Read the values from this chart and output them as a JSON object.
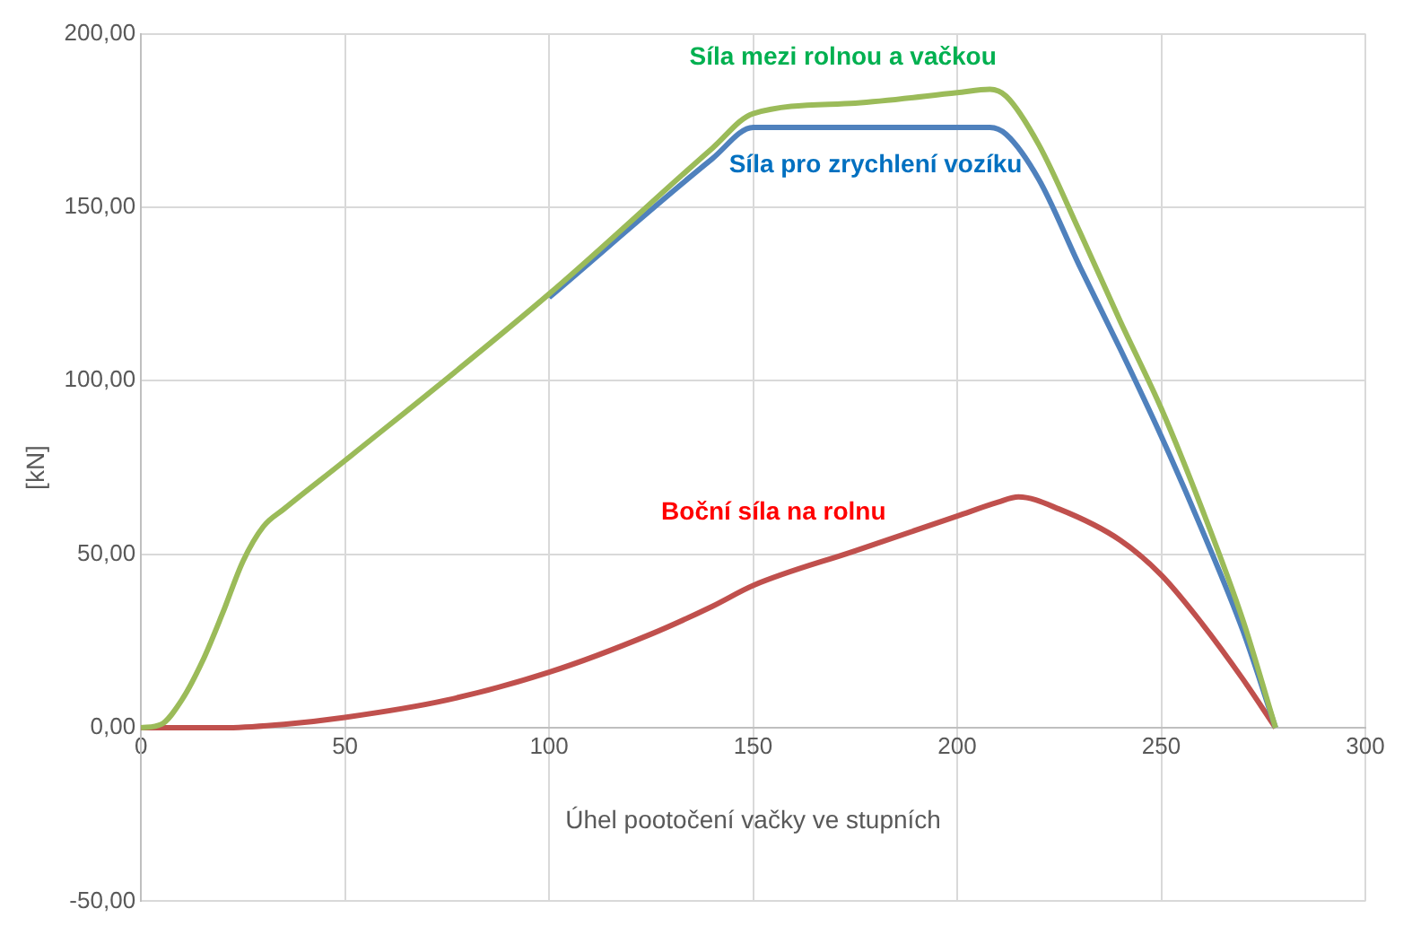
{
  "chart_data": {
    "type": "line",
    "xlabel": "Úhel pootočení vačky ve stupních",
    "ylabel": "[kN]",
    "xlim": [
      0,
      300
    ],
    "xticks": [
      0,
      50,
      100,
      150,
      200,
      250,
      300
    ],
    "ylim": [
      -50,
      200
    ],
    "yticks": [
      {
        "value": -50,
        "label": "-50,00"
      },
      {
        "value": 0,
        "label": "0,00"
      },
      {
        "value": 50,
        "label": "50,00"
      },
      {
        "value": 100,
        "label": "100,00"
      },
      {
        "value": 150,
        "label": "150,00"
      },
      {
        "value": 200,
        "label": "200,00"
      }
    ],
    "grid": true,
    "legend": false,
    "marker": "none",
    "line_style": "solid",
    "series": [
      {
        "name": "Síla mezi rolnou a vačkou",
        "color": "#9bbb59",
        "x": [
          0,
          5,
          10,
          15,
          20,
          25,
          30,
          35,
          50,
          100,
          140,
          150,
          175,
          200,
          208,
          212,
          220,
          230,
          240,
          250,
          260,
          270,
          278
        ],
        "values": [
          0,
          1,
          8,
          19,
          33,
          48,
          58,
          63,
          77,
          125,
          167,
          177,
          180,
          183,
          184,
          182,
          168,
          143,
          117,
          92,
          63,
          31,
          0
        ]
      },
      {
        "name": "Síla pro zrychlení vozíku",
        "color": "#4f81bd",
        "x": [
          100,
          140,
          150,
          175,
          208,
          212,
          220,
          230,
          240,
          250,
          260,
          270,
          278
        ],
        "values": [
          124,
          164,
          173,
          173,
          173,
          171,
          158,
          133,
          109,
          84,
          57,
          28,
          0
        ]
      },
      {
        "name": "Boční síla na rolnu",
        "color": "#c0504d",
        "x": [
          0,
          20,
          35,
          50,
          75,
          100,
          125,
          140,
          150,
          175,
          200,
          210,
          215,
          225,
          240,
          250,
          260,
          270,
          278
        ],
        "values": [
          0,
          0,
          1,
          3,
          8,
          16,
          27,
          35,
          41,
          51,
          61,
          65,
          66.5,
          63,
          54,
          44,
          30,
          14,
          0
        ]
      }
    ]
  }
}
